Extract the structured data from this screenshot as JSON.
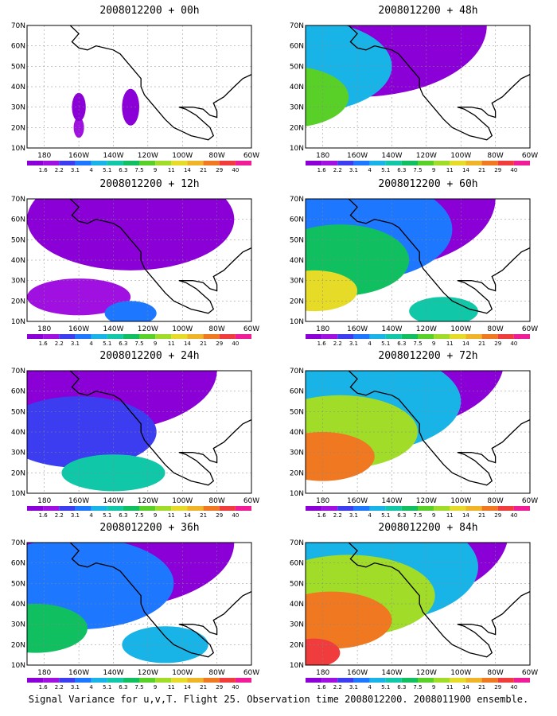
{
  "panels": [
    {
      "title": "2008012200 + 00h"
    },
    {
      "title": "2008012200 + 48h"
    },
    {
      "title": "2008012200 + 12h"
    },
    {
      "title": "2008012200 + 60h"
    },
    {
      "title": "2008012200 + 24h"
    },
    {
      "title": "2008012200 + 72h"
    },
    {
      "title": "2008012200 + 36h"
    },
    {
      "title": "2008012200 + 84h"
    }
  ],
  "map_axes": {
    "lon_labels": [
      "180",
      "160W",
      "140W",
      "120W",
      "100W",
      "80W",
      "60W"
    ],
    "lat_labels": [
      "10N",
      "20N",
      "30N",
      "40N",
      "50N",
      "60N",
      "70N"
    ]
  },
  "colorbar": {
    "labels": [
      "1.6",
      "2.2",
      "3.1",
      "4",
      "5.1",
      "6.3",
      "7.5",
      "9",
      "11",
      "14",
      "21",
      "29",
      "40"
    ],
    "colors": [
      "#8a00d6",
      "#a010e0",
      "#3c3cf0",
      "#1e78ff",
      "#18b4e8",
      "#10c8a8",
      "#10c060",
      "#58d028",
      "#a0dc28",
      "#e6dc28",
      "#f0b428",
      "#f07820",
      "#f03c3c",
      "#f01e96"
    ]
  },
  "caption": "Signal Variance for u,v,T. Flight 25. Observation time 2008012200. 2008011900 ensemble."
}
